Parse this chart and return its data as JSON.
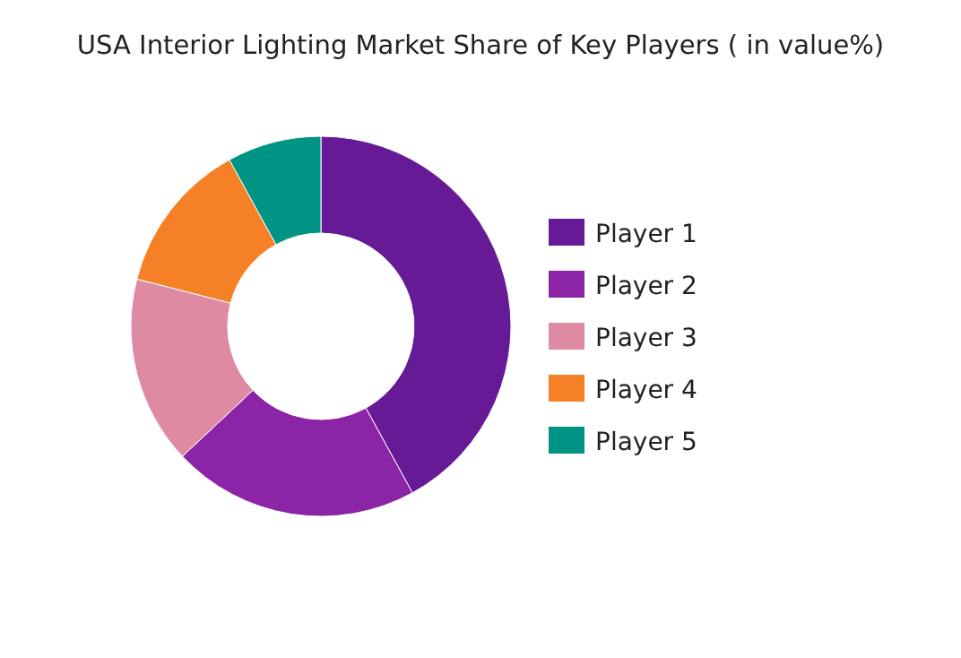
{
  "chart_data": {
    "type": "donut",
    "title": "USA Interior Lighting Market Share of Key Players ( in value%)",
    "categories": [
      "Player 1",
      "Player 2",
      "Player 3",
      "Player 4",
      "Player 5"
    ],
    "values": [
      42,
      21,
      16,
      13,
      8
    ],
    "colors": [
      "#671a96",
      "#8c24a8",
      "#dd8aa2",
      "#f58025",
      "#009485"
    ],
    "legend": "right"
  }
}
